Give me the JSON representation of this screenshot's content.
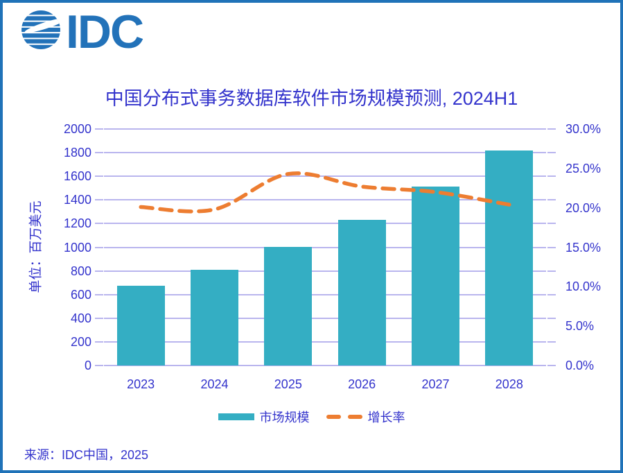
{
  "brand": {
    "logo_text": "IDC",
    "logo_icon": "idc-globe-logo"
  },
  "title": "中国分布式事务数据库软件市场规模预测, 2024H1",
  "source": "来源：IDC中国，2025",
  "colors": {
    "border": "#1F72B8",
    "logo_blue": "#2272B9",
    "text_blue": "#3333CC",
    "bar_teal": "#34AEC3",
    "line_orange": "#ED7D31",
    "gridline_purple": "#B9B5EE"
  },
  "chart_data": {
    "type": "bar",
    "subtype": "bar-line-combo",
    "title": "中国分布式事务数据库软件市场规模预测, 2024H1",
    "categories": [
      "2023",
      "2024",
      "2025",
      "2026",
      "2027",
      "2028"
    ],
    "series": [
      {
        "name": "市场规模",
        "type": "bar",
        "axis": "left",
        "values": [
          675,
          810,
          1005,
          1230,
          1515,
          1820
        ]
      },
      {
        "name": "增长率",
        "type": "line",
        "axis": "right",
        "unit": "%",
        "values": [
          20.1,
          19.8,
          24.3,
          22.7,
          22.0,
          20.4
        ]
      }
    ],
    "left_axis": {
      "title": "单位：百万美元",
      "min": 0,
      "max": 2000,
      "tick_interval": 200,
      "tick_labels": [
        "2000",
        "1800",
        "1600",
        "1400",
        "1200",
        "1000",
        "800",
        "600",
        "400",
        "200",
        "0"
      ]
    },
    "right_axis": {
      "min": 0,
      "max": 30,
      "tick_interval": 5,
      "tick_labels": [
        "30.0%",
        "25.0%",
        "20.0%",
        "15.0%",
        "10.0%",
        "5.0%",
        "0.0%"
      ]
    },
    "grid": "horizontal",
    "legend_position": "bottom"
  }
}
